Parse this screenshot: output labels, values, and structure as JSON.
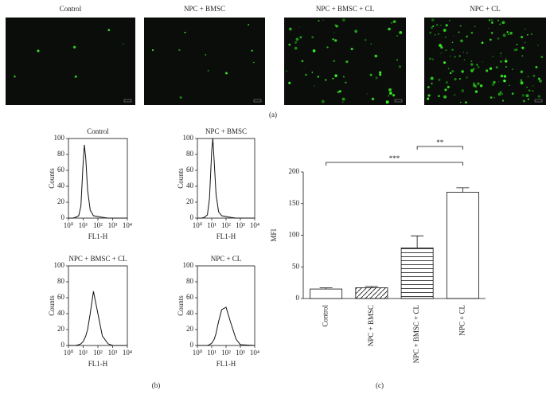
{
  "images": [
    {
      "label": "Control"
    },
    {
      "label": "NPC + BMSC"
    },
    {
      "label": "NPC + BMSC + CL"
    },
    {
      "label": "NPC + CL"
    }
  ],
  "panel_labels": [
    "(a)",
    "(b)",
    "(c)"
  ],
  "chart_data": [
    {
      "type": "line",
      "title": "Control",
      "xlabel": "FL1-H",
      "ylabel": "Counts",
      "log_x": true,
      "x": [
        1,
        2,
        3,
        5,
        7,
        10,
        12,
        15,
        20,
        30,
        50,
        100,
        200,
        500,
        1000,
        10000
      ],
      "values": [
        0,
        0,
        1,
        3,
        15,
        70,
        92,
        75,
        35,
        10,
        3,
        2,
        1,
        0,
        0,
        0
      ],
      "color": "#111111",
      "xlim": [
        1,
        10000
      ],
      "ylim": [
        0,
        100
      ],
      "xticks": [
        {
          "value": 1,
          "label": "10⁰"
        },
        {
          "value": 10,
          "label": "10¹"
        },
        {
          "value": 100,
          "label": "10²"
        },
        {
          "value": 1000,
          "label": "10³"
        },
        {
          "value": 10000,
          "label": "10⁴"
        }
      ],
      "yticks": [
        0,
        20,
        40,
        60,
        80,
        100
      ]
    },
    {
      "type": "line",
      "title": "NPC + BMSC",
      "xlabel": "FL1-H",
      "ylabel": "Counts",
      "log_x": true,
      "x": [
        1,
        2,
        3,
        5,
        7,
        10,
        12,
        15,
        20,
        30,
        50,
        100,
        200,
        500,
        1000,
        10000
      ],
      "values": [
        0,
        0,
        1,
        4,
        25,
        85,
        100,
        70,
        30,
        8,
        3,
        2,
        1,
        0,
        0,
        0
      ],
      "color": "#111111",
      "xlim": [
        1,
        10000
      ],
      "ylim": [
        0,
        100
      ],
      "xticks": [
        {
          "value": 1,
          "label": "10⁰"
        },
        {
          "value": 10,
          "label": "10¹"
        },
        {
          "value": 100,
          "label": "10²"
        },
        {
          "value": 1000,
          "label": "10³"
        },
        {
          "value": 10000,
          "label": "10⁴"
        }
      ],
      "yticks": [
        0,
        20,
        40,
        60,
        80,
        100
      ]
    },
    {
      "type": "line",
      "title": "NPC + BMSC + CL",
      "xlabel": "FL1-H",
      "ylabel": "Counts",
      "log_x": true,
      "x": [
        1,
        2,
        3,
        5,
        7,
        10,
        12,
        15,
        20,
        30,
        50,
        100,
        200,
        500,
        1000,
        10000
      ],
      "values": [
        0,
        0,
        0,
        1,
        2,
        5,
        8,
        12,
        20,
        40,
        68,
        40,
        12,
        2,
        0,
        0
      ],
      "color": "#111111",
      "xlim": [
        1,
        10000
      ],
      "ylim": [
        0,
        100
      ],
      "xticks": [
        {
          "value": 1,
          "label": "10⁰"
        },
        {
          "value": 10,
          "label": "10¹"
        },
        {
          "value": 100,
          "label": "10²"
        },
        {
          "value": 1000,
          "label": "10³"
        },
        {
          "value": 10000,
          "label": "10⁴"
        }
      ],
      "yticks": [
        0,
        20,
        40,
        60,
        80,
        100
      ]
    },
    {
      "type": "line",
      "title": "NPC + CL",
      "xlabel": "FL1-H",
      "ylabel": "Counts",
      "log_x": true,
      "x": [
        1,
        2,
        3,
        5,
        7,
        10,
        12,
        15,
        20,
        30,
        50,
        100,
        200,
        500,
        1000,
        10000
      ],
      "values": [
        0,
        0,
        0,
        0,
        1,
        3,
        5,
        8,
        15,
        30,
        45,
        48,
        30,
        8,
        1,
        0
      ],
      "color": "#111111",
      "xlim": [
        1,
        10000
      ],
      "ylim": [
        0,
        100
      ],
      "xticks": [
        {
          "value": 1,
          "label": "10⁰"
        },
        {
          "value": 10,
          "label": "10¹"
        },
        {
          "value": 100,
          "label": "10²"
        },
        {
          "value": 1000,
          "label": "10³"
        },
        {
          "value": 10000,
          "label": "10⁴"
        }
      ],
      "yticks": [
        0,
        20,
        40,
        60,
        80,
        100
      ]
    },
    {
      "type": "bar",
      "ylabel": "MFI",
      "categories": [
        "Control",
        "NPC + BMSC",
        "NPC + BMSC + CL",
        "NPC + CL"
      ],
      "values": [
        15,
        17,
        80,
        168
      ],
      "errors": [
        2,
        2,
        19,
        7
      ],
      "hatches": [
        "none",
        "/",
        "-",
        "\\"
      ],
      "color": "#111111",
      "ylim": [
        0,
        200
      ],
      "yticks": [
        0,
        50,
        100,
        150,
        200
      ],
      "annotations": [
        "***",
        "**"
      ]
    }
  ]
}
